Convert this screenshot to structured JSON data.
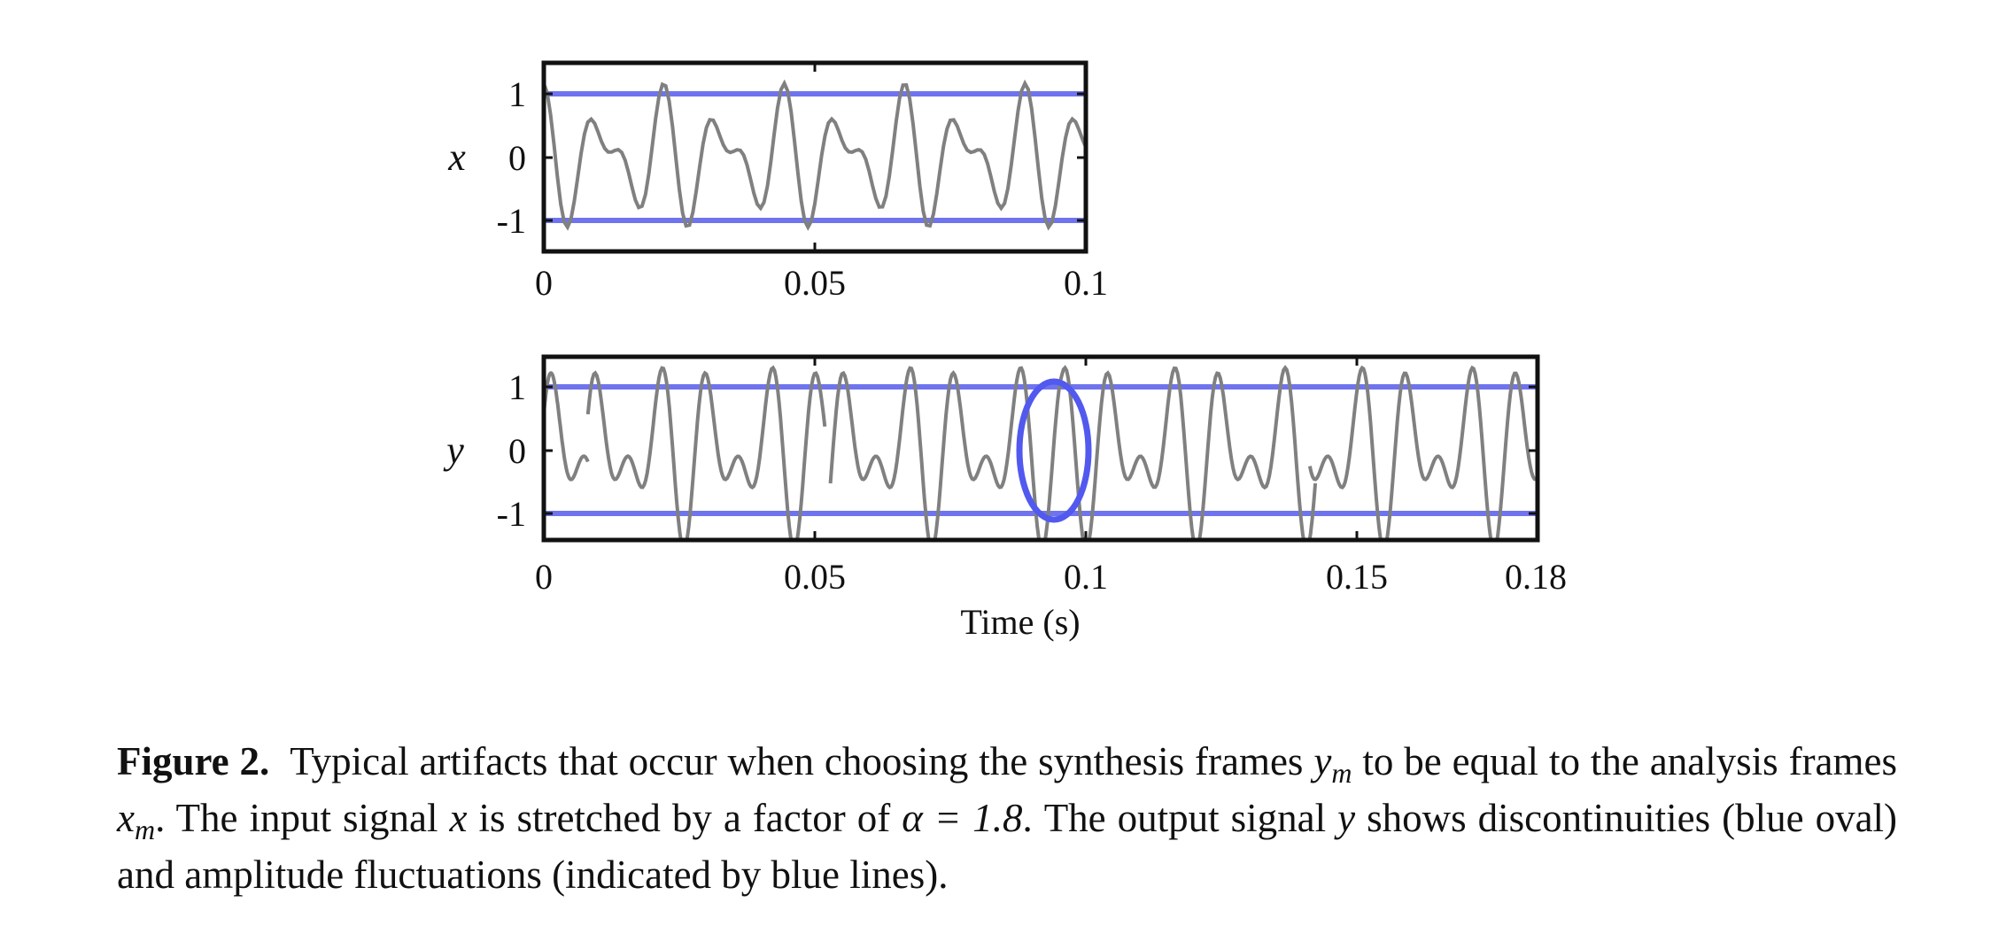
{
  "chart_data": [
    {
      "type": "line",
      "ylabel": "x",
      "xlabel": "",
      "xlim": [
        0,
        0.1
      ],
      "ylim": [
        -1.5,
        1.5
      ],
      "xticks": [
        "0",
        "0.05",
        "0.1"
      ],
      "yticks": [
        "1",
        "0",
        "-1"
      ],
      "reference_lines": [
        1,
        -1
      ],
      "reference_line_color": "#6f74ee",
      "signal_color": "#808080",
      "signal": {
        "components": [
          {
            "amp": 0.52,
            "freq": 90,
            "phase": 1.85
          },
          {
            "amp": 0.38,
            "freq": 135,
            "phase": 1.45
          }
        ]
      }
    },
    {
      "type": "line",
      "ylabel": "y",
      "xlabel": "Time (s)",
      "xlim": [
        0,
        0.18
      ],
      "ylim": [
        -1.5,
        1.5
      ],
      "xticks": [
        "0",
        "0.05",
        "0.1",
        "0.15",
        "0.18"
      ],
      "yticks": [
        "1",
        "0",
        "-1"
      ],
      "reference_lines": [
        1,
        -1
      ],
      "reference_line_color": "#6f74ee",
      "signal_color": "#808080",
      "signal": {
        "components": [
          {
            "amp": 0.62,
            "freq": 100,
            "phase": 0.0
          },
          {
            "amp": 0.55,
            "freq": 150,
            "phase": 0.9
          }
        ],
        "segments": [
          {
            "start": 0.0,
            "end": 0.008,
            "shift": 0.0
          },
          {
            "start": 0.008,
            "end": 0.051,
            "shift": 0.012
          },
          {
            "start": 0.052,
            "end": 0.094,
            "shift": 0.027
          },
          {
            "start": 0.094,
            "end": 0.14,
            "shift": 0.039
          },
          {
            "start": 0.139,
            "end": 0.18,
            "shift": 0.005
          }
        ]
      },
      "annotation": {
        "shape": "oval",
        "x": 0.0935,
        "y": 0.0,
        "color": "#5259ee"
      }
    }
  ],
  "caption": {
    "label": "Figure 2.",
    "part1": "Typical artifacts that occur when choosing the synthesis frames",
    "sym1": "y",
    "sub1": "m",
    "part2": "to be equal to the analysis frames",
    "sym2": "x",
    "sub2": "m",
    "part3": ". The input signal",
    "sym3": "x",
    "part4": "is stretched by a factor of",
    "sym4": "α = 1.8",
    "part5": ". The output signal",
    "sym5": "y",
    "part6": "shows discontinuities (blue oval) and amplitude fluctuations (indicated by blue lines)."
  }
}
